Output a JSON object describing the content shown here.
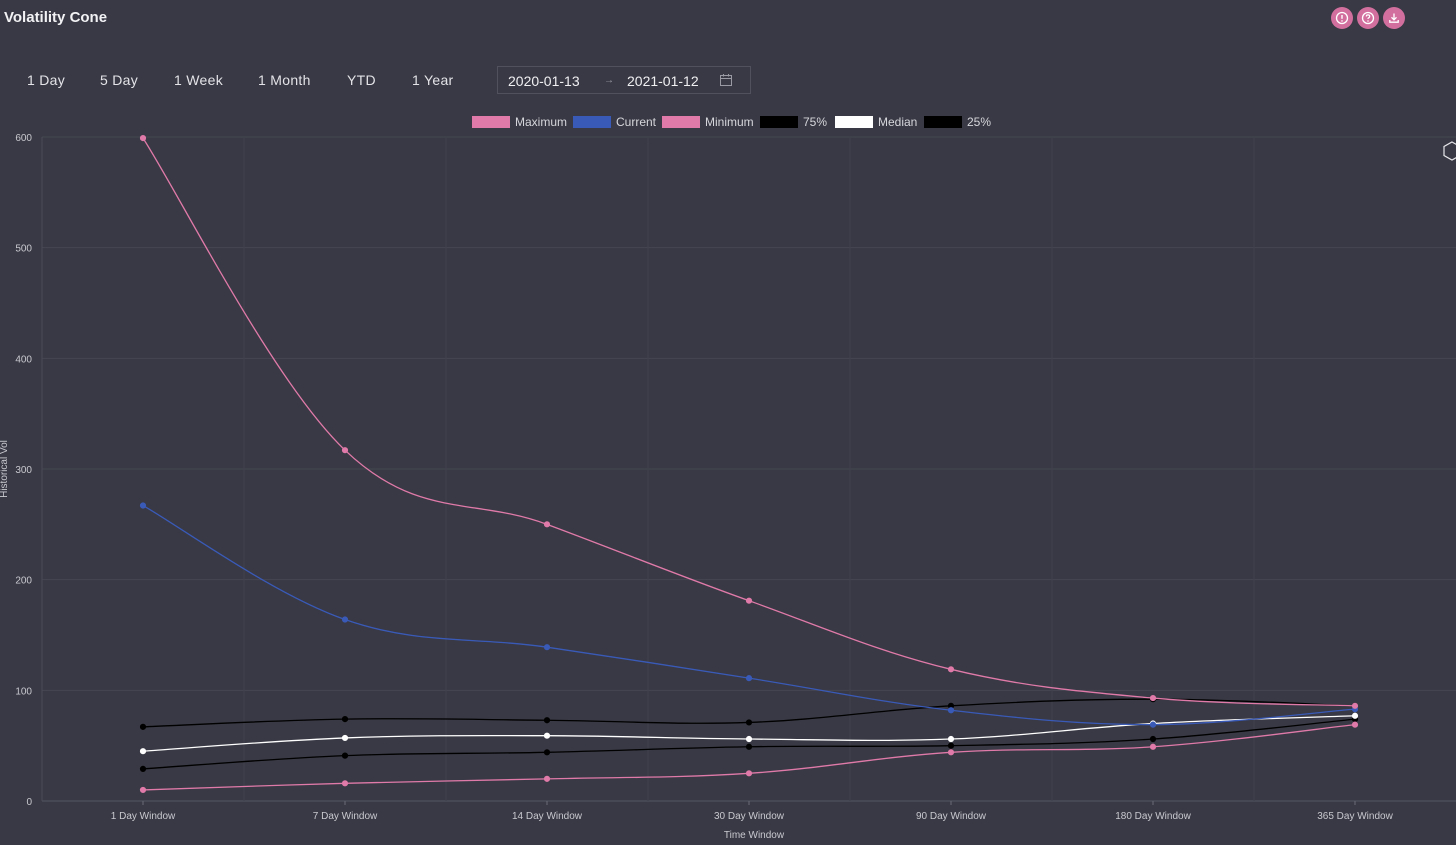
{
  "header": {
    "title": "Volatility Cone"
  },
  "toolbar": {
    "icons": [
      "info-icon",
      "help-icon",
      "download-icon"
    ],
    "ranges": [
      "1 Day",
      "5 Day",
      "1 Week",
      "1 Month",
      "YTD",
      "1 Year"
    ],
    "date_start": "2020-01-13",
    "date_arrow": "→",
    "date_end": "2021-01-12"
  },
  "chart_data": {
    "type": "line",
    "title": "",
    "xlabel": "Time Window",
    "ylabel": "Historical Vol",
    "ylim": [
      0,
      600
    ],
    "yticks": [
      "0",
      "100",
      "200",
      "300",
      "400",
      "500",
      "600"
    ],
    "categories": [
      "1 Day Window",
      "7 Day Window",
      "14 Day Window",
      "30 Day Window",
      "90 Day Window",
      "180 Day Window",
      "365 Day Window"
    ],
    "grid": true,
    "legend_position": "top",
    "series": [
      {
        "name": "Maximum",
        "color": "#e07aa8",
        "values": [
          599,
          317,
          250,
          181,
          119,
          93,
          86
        ]
      },
      {
        "name": "Current",
        "color": "#3a5ab8",
        "values": [
          267,
          164,
          139,
          111,
          82,
          69,
          83
        ]
      },
      {
        "name": "Minimum",
        "color": "#e07aa8",
        "values": [
          10,
          16,
          20,
          25,
          44,
          49,
          69
        ]
      },
      {
        "name": "75%",
        "color": "#000000",
        "values": [
          67,
          74,
          73,
          71,
          86,
          92,
          86
        ]
      },
      {
        "name": "Median",
        "color": "#ffffff",
        "values": [
          45,
          57,
          59,
          56,
          56,
          70,
          77
        ]
      },
      {
        "name": "25%",
        "color": "#000000",
        "values": [
          29,
          41,
          44,
          49,
          50,
          56,
          74
        ]
      }
    ]
  }
}
